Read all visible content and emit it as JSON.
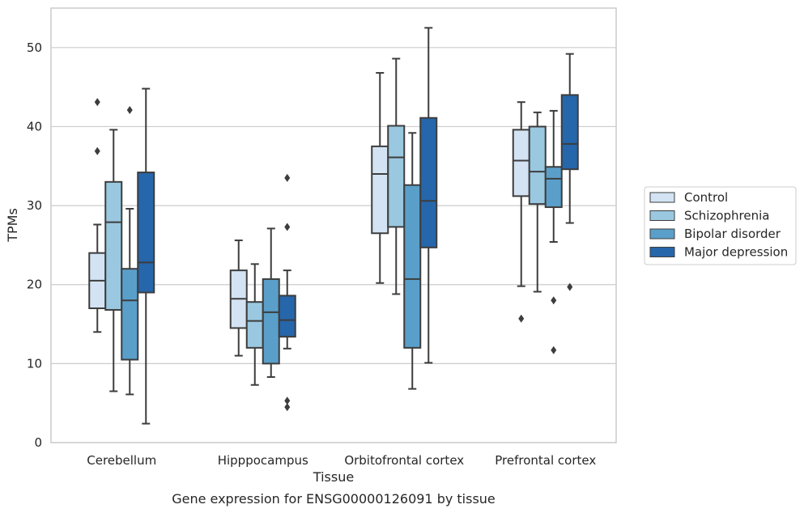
{
  "chart_data": {
    "type": "box",
    "caption": "Gene expression for ENSG00000126091 by tissue",
    "xlabel": "Tissue",
    "ylabel": "TPMs",
    "ylim": [
      0,
      55
    ],
    "yticks": [
      0,
      10,
      20,
      30,
      40,
      50
    ],
    "grid": "horizontal",
    "legend_position": "right",
    "categories": [
      "Cerebellum",
      "Hipppocampus",
      "Orbitofrontal cortex",
      "Prefrontal cortex"
    ],
    "series": [
      {
        "name": "Control",
        "color": "#d3e3f3",
        "boxes": [
          {
            "whislo": 14.0,
            "q1": 17.0,
            "med": 20.5,
            "q3": 24.0,
            "whishi": 27.6,
            "fliers": [
              43.1,
              36.9
            ]
          },
          {
            "whislo": 11.0,
            "q1": 14.5,
            "med": 18.2,
            "q3": 21.8,
            "whishi": 25.6,
            "fliers": []
          },
          {
            "whislo": 20.2,
            "q1": 26.5,
            "med": 34.0,
            "q3": 37.5,
            "whishi": 46.8,
            "fliers": []
          },
          {
            "whislo": 19.8,
            "q1": 31.2,
            "med": 35.7,
            "q3": 39.6,
            "whishi": 43.1,
            "fliers": [
              15.7
            ]
          }
        ]
      },
      {
        "name": "Schizophrenia",
        "color": "#9ac8e0",
        "boxes": [
          {
            "whislo": 6.5,
            "q1": 16.8,
            "med": 27.9,
            "q3": 33.0,
            "whishi": 39.6,
            "fliers": []
          },
          {
            "whislo": 7.3,
            "q1": 12.0,
            "med": 15.4,
            "q3": 17.8,
            "whishi": 22.6,
            "fliers": []
          },
          {
            "whislo": 18.8,
            "q1": 27.3,
            "med": 36.1,
            "q3": 40.1,
            "whishi": 48.6,
            "fliers": []
          },
          {
            "whislo": 19.1,
            "q1": 30.2,
            "med": 34.3,
            "q3": 40.0,
            "whishi": 41.8,
            "fliers": []
          }
        ]
      },
      {
        "name": "Bipolar disorder",
        "color": "#5a9fca",
        "boxes": [
          {
            "whislo": 6.1,
            "q1": 10.5,
            "med": 18.0,
            "q3": 22.0,
            "whishi": 29.6,
            "fliers": [
              42.1
            ]
          },
          {
            "whislo": 8.3,
            "q1": 10.0,
            "med": 16.5,
            "q3": 20.7,
            "whishi": 27.1,
            "fliers": []
          },
          {
            "whislo": 6.8,
            "q1": 12.0,
            "med": 20.7,
            "q3": 32.6,
            "whishi": 39.2,
            "fliers": []
          },
          {
            "whislo": 25.4,
            "q1": 29.8,
            "med": 33.4,
            "q3": 34.9,
            "whishi": 42.0,
            "fliers": [
              18.0,
              11.7
            ]
          }
        ]
      },
      {
        "name": "Major depression",
        "color": "#2666aa",
        "boxes": [
          {
            "whislo": 2.4,
            "q1": 19.0,
            "med": 22.8,
            "q3": 34.2,
            "whishi": 44.8,
            "fliers": []
          },
          {
            "whislo": 11.9,
            "q1": 13.4,
            "med": 15.5,
            "q3": 18.6,
            "whishi": 21.8,
            "fliers": [
              33.5,
              27.3,
              5.3,
              4.5
            ]
          },
          {
            "whislo": 10.1,
            "q1": 24.7,
            "med": 30.6,
            "q3": 41.1,
            "whishi": 52.5,
            "fliers": []
          },
          {
            "whislo": 27.8,
            "q1": 34.6,
            "med": 37.8,
            "q3": 44.0,
            "whishi": 49.2,
            "fliers": [
              19.7
            ]
          }
        ]
      }
    ]
  }
}
